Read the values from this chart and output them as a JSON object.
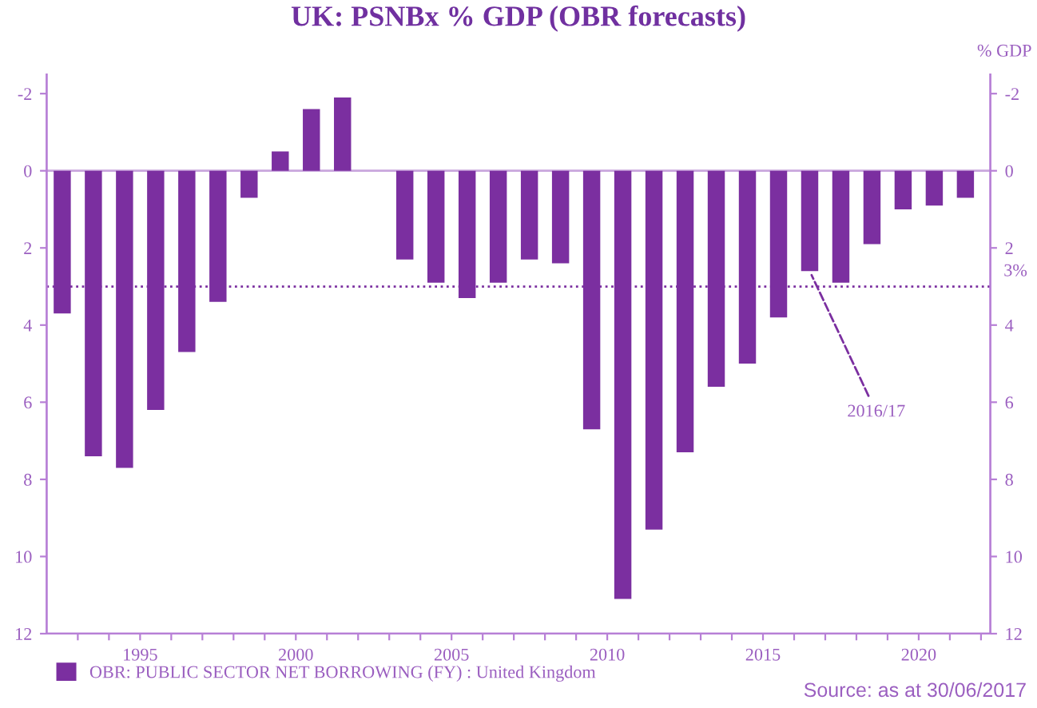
{
  "chart_data": {
    "type": "bar",
    "title": "UK: PSNBx % GDP (OBR forecasts)",
    "y2label": "% GDP",
    "x": [
      1992.5,
      1993.5,
      1994.5,
      1995.5,
      1996.5,
      1997.5,
      1998.5,
      1999.5,
      2000.5,
      2001.5,
      2002.5,
      2003.5,
      2004.5,
      2005.5,
      2006.5,
      2007.5,
      2008.5,
      2009.5,
      2010.5,
      2011.5,
      2012.5,
      2013.5,
      2014.5,
      2015.5,
      2016.5,
      2017.5,
      2018.5,
      2019.5,
      2020.5,
      2021.5
    ],
    "series": [
      {
        "name": "OBR: PUBLIC SECTOR NET BORROWING (FY) : United Kingdom",
        "color": "#7b2fa0",
        "values": [
          3.7,
          7.4,
          7.7,
          6.2,
          4.7,
          3.4,
          0.7,
          -0.5,
          -1.6,
          -1.9,
          null,
          2.3,
          2.9,
          3.3,
          2.9,
          2.3,
          2.4,
          6.7,
          11.1,
          9.3,
          7.3,
          5.6,
          5.0,
          3.8,
          2.6,
          2.9,
          1.9,
          1.0,
          0.9,
          0.7
        ]
      }
    ],
    "xlim": [
      1992,
      2022.3
    ],
    "xticks": [
      {
        "value": 1993,
        "label": null
      },
      {
        "value": 1994,
        "label": null
      },
      1995,
      {
        "value": 1996,
        "label": null
      },
      {
        "value": 1997,
        "label": null
      },
      {
        "value": 1998,
        "label": null
      },
      {
        "value": 1999,
        "label": null
      },
      2000,
      {
        "value": 2001,
        "label": null
      },
      {
        "value": 2002,
        "label": null
      },
      {
        "value": 2003,
        "label": null
      },
      {
        "value": 2004,
        "label": null
      },
      2005,
      {
        "value": 2006,
        "label": null
      },
      {
        "value": 2007,
        "label": null
      },
      {
        "value": 2008,
        "label": null
      },
      {
        "value": 2009,
        "label": null
      },
      2010,
      {
        "value": 2011,
        "label": null
      },
      {
        "value": 2012,
        "label": null
      },
      {
        "value": 2013,
        "label": null
      },
      {
        "value": 2014,
        "label": null
      },
      2015,
      {
        "value": 2016,
        "label": null
      },
      {
        "value": 2017,
        "label": null
      },
      {
        "value": 2018,
        "label": null
      },
      {
        "value": 2019,
        "label": null
      },
      2020,
      {
        "value": 2021,
        "label": null
      },
      {
        "value": 2022,
        "label": null
      }
    ],
    "ylim": [
      12,
      -2.5
    ],
    "yticks": [
      -2,
      0,
      2,
      4,
      6,
      8,
      10,
      12
    ],
    "y2lim": [
      12,
      -2.5
    ],
    "y2ticks": [
      -2,
      0,
      2,
      4,
      6,
      8,
      10,
      12
    ],
    "ref_lines": [
      {
        "axis": "y",
        "value": 0,
        "color": "#c9a6dd",
        "line_style": "solid"
      },
      {
        "axis": "y",
        "value": 3,
        "label": "3%",
        "color": "#7b2fa0",
        "line_style": "dotted"
      }
    ],
    "annotations": [
      {
        "text": "2016/17",
        "x": 2016.5,
        "y": 2.6
      },
      "Source: as at 30/06/2017"
    ],
    "legend": "bottom",
    "grid": false
  }
}
